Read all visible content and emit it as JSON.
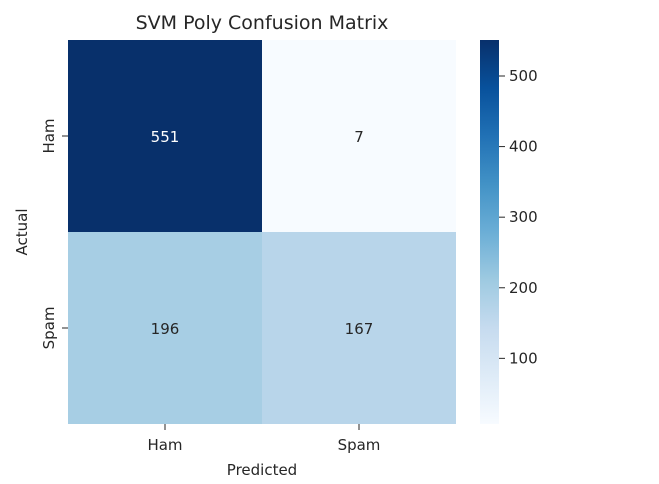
{
  "chart_data": {
    "type": "heatmap",
    "title": "SVM Poly Confusion Matrix",
    "xlabel": "Predicted",
    "ylabel": "Actual",
    "x_categories": [
      "Ham",
      "Spam"
    ],
    "y_categories": [
      "Ham",
      "Spam"
    ],
    "values": [
      [
        551,
        7
      ],
      [
        196,
        167
      ]
    ],
    "colormap": "Blues",
    "colorbar": {
      "min": 7,
      "max": 551,
      "ticks": [
        100,
        200,
        300,
        400,
        500
      ],
      "tick_labels": [
        "100",
        "200",
        "300",
        "400",
        "500"
      ]
    },
    "annotation_colors": {
      "dark_cell": "#ffffff",
      "light_cell": "#262626"
    }
  }
}
